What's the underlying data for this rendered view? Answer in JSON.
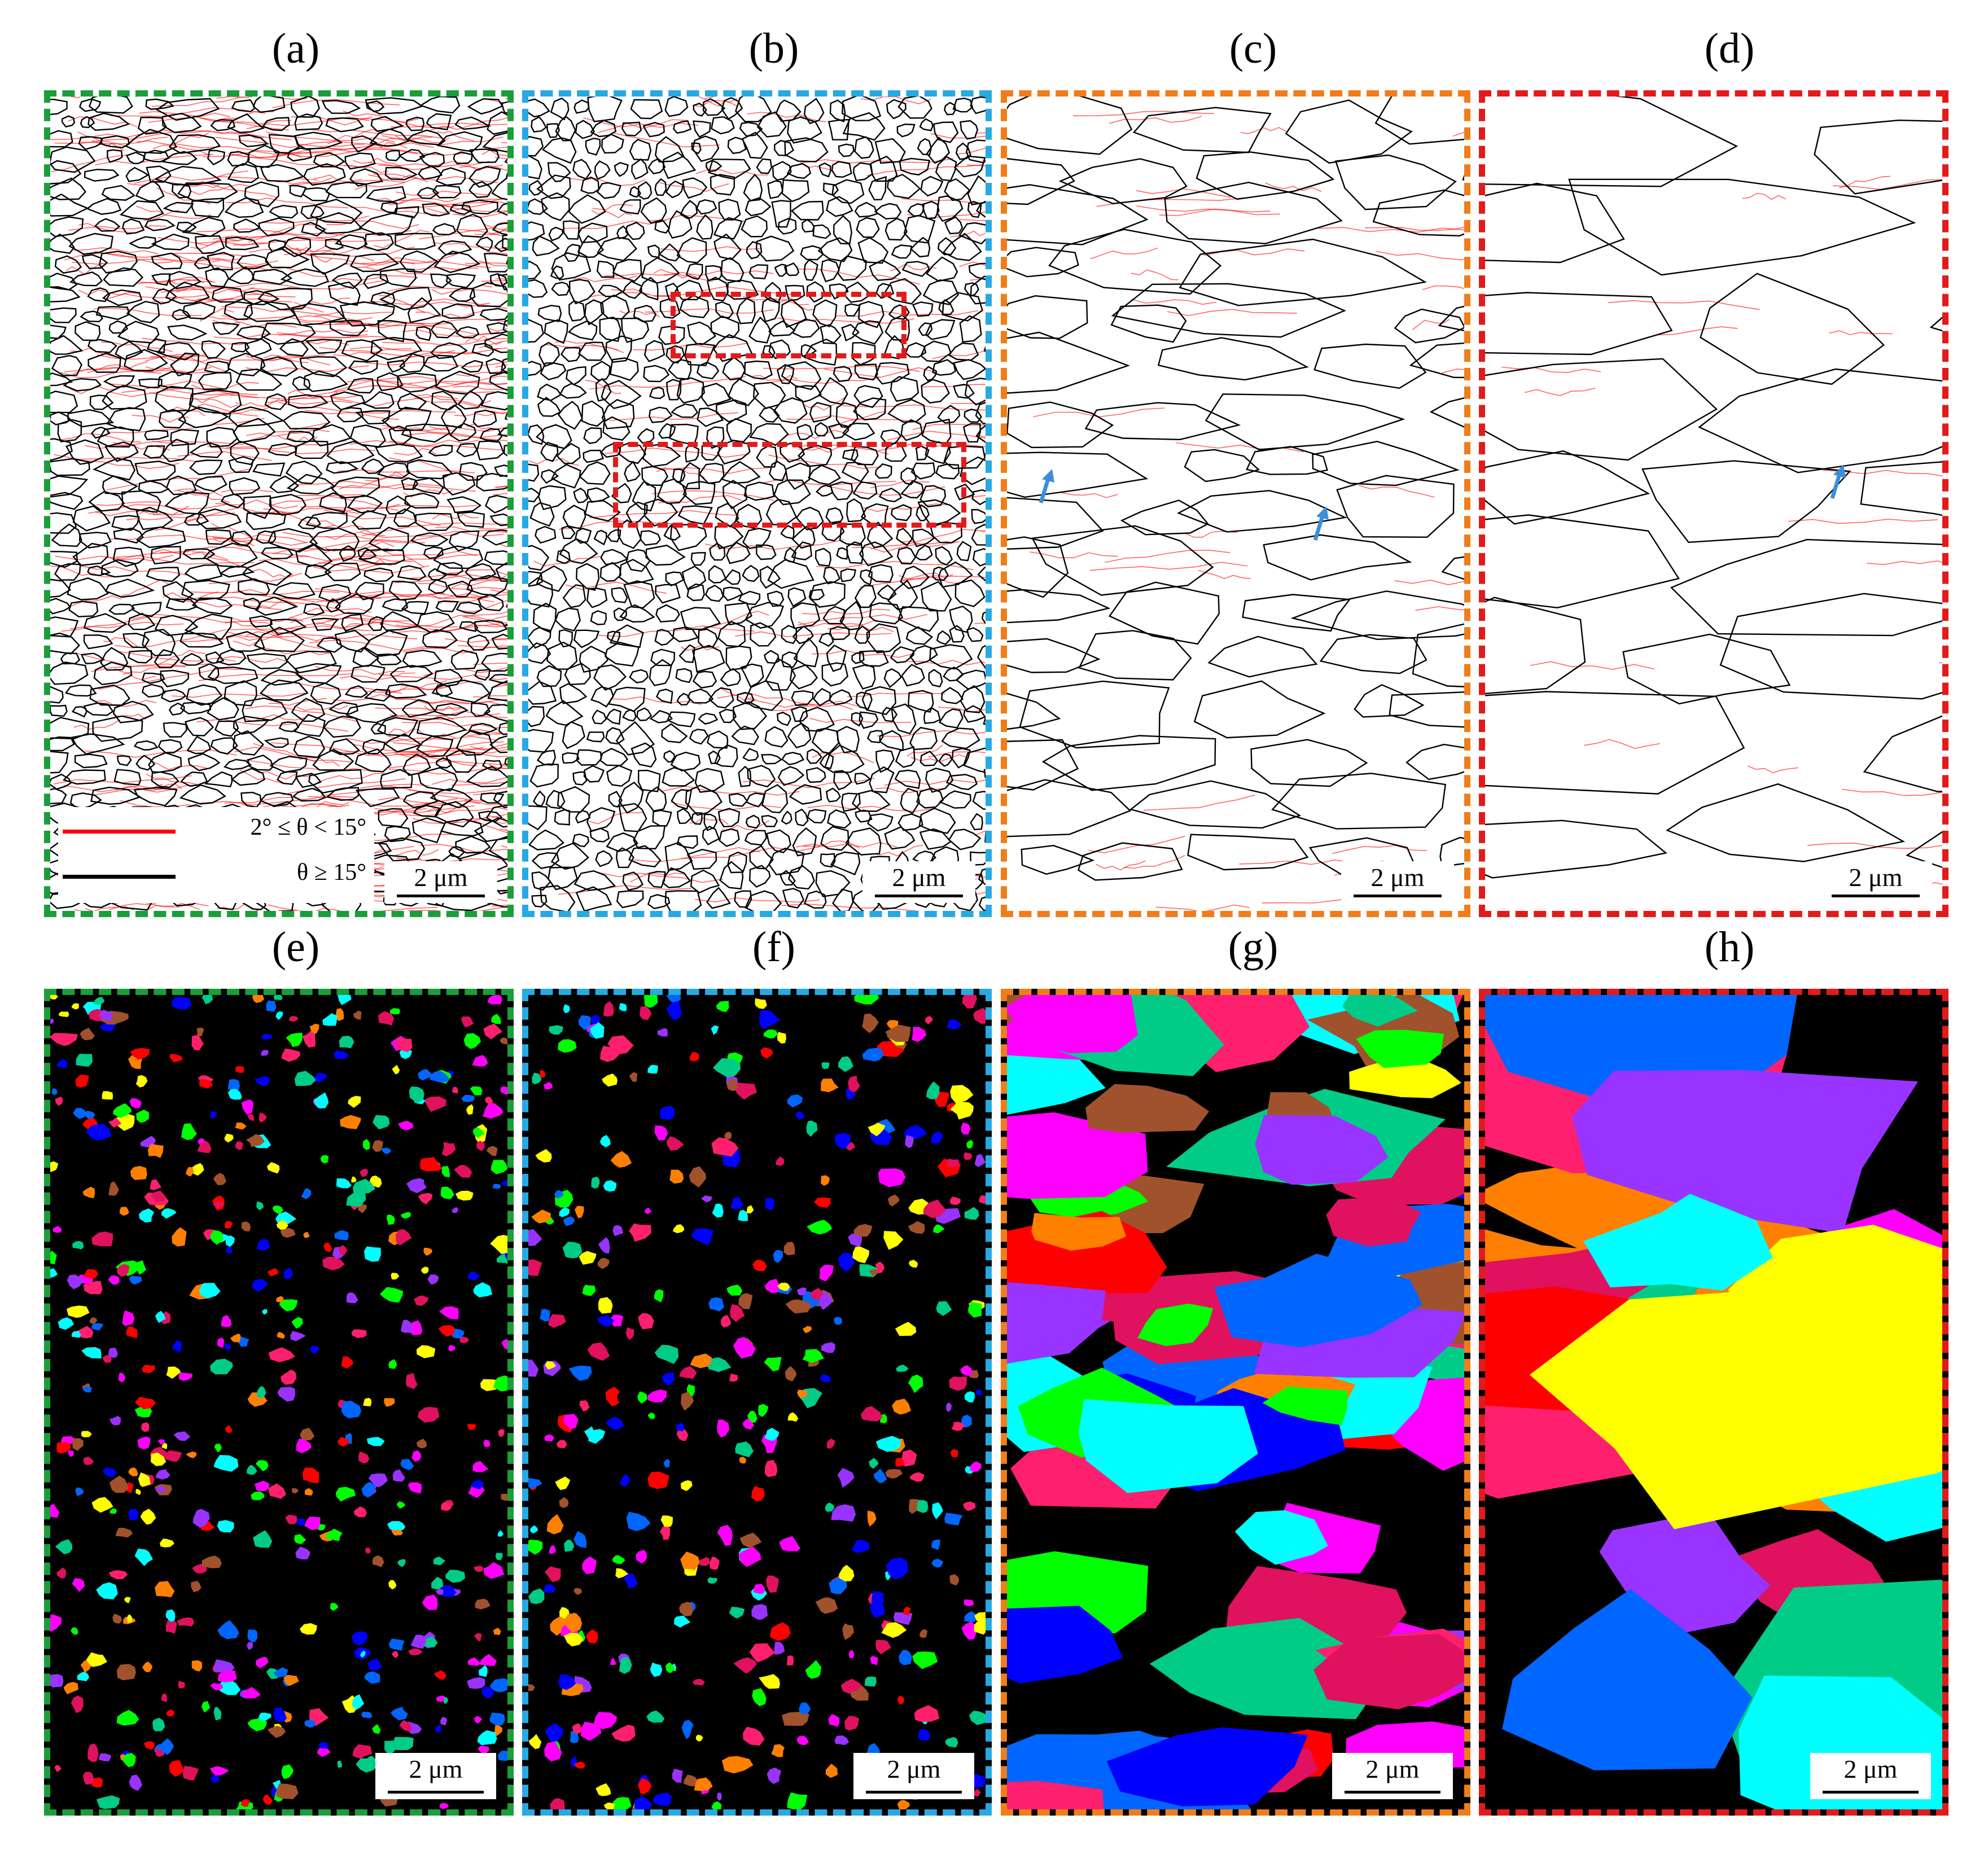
{
  "colors": {
    "panel_a": "#1a9e3a",
    "panel_b": "#27a9e1",
    "panel_c": "#f07d1a",
    "panel_d": "#e11b1b",
    "low_angle": "#ff0000",
    "high_angle": "#000000",
    "arrow": "#3b8fd9",
    "highlight_box": "#e11b1b"
  },
  "panels": [
    {
      "id": "a",
      "label": "(a)",
      "scale": "2 μm"
    },
    {
      "id": "b",
      "label": "(b)",
      "scale": "2 μm"
    },
    {
      "id": "c",
      "label": "(c)",
      "scale": "2 μm"
    },
    {
      "id": "d",
      "label": "(d)",
      "scale": "2 μm"
    },
    {
      "id": "e",
      "label": "(e)",
      "scale": "2 μm"
    },
    {
      "id": "f",
      "label": "(f)",
      "scale": "2 μm"
    },
    {
      "id": "g",
      "label": "(g)",
      "scale": "2 μm"
    },
    {
      "id": "h",
      "label": "(h)",
      "scale": "2 μm"
    }
  ],
  "legend": {
    "low_angle_label": "2° ≤ θ < 15°",
    "high_angle_label": "θ ≥ 15°"
  },
  "grain_palette": [
    "#00ff00",
    "#ff00ff",
    "#0000ff",
    "#ff0000",
    "#ff8000",
    "#ffff00",
    "#00ffff",
    "#ff1f6f",
    "#00cc88",
    "#a0522d",
    "#9933ff",
    "#0066ff",
    "#e0115f"
  ]
}
